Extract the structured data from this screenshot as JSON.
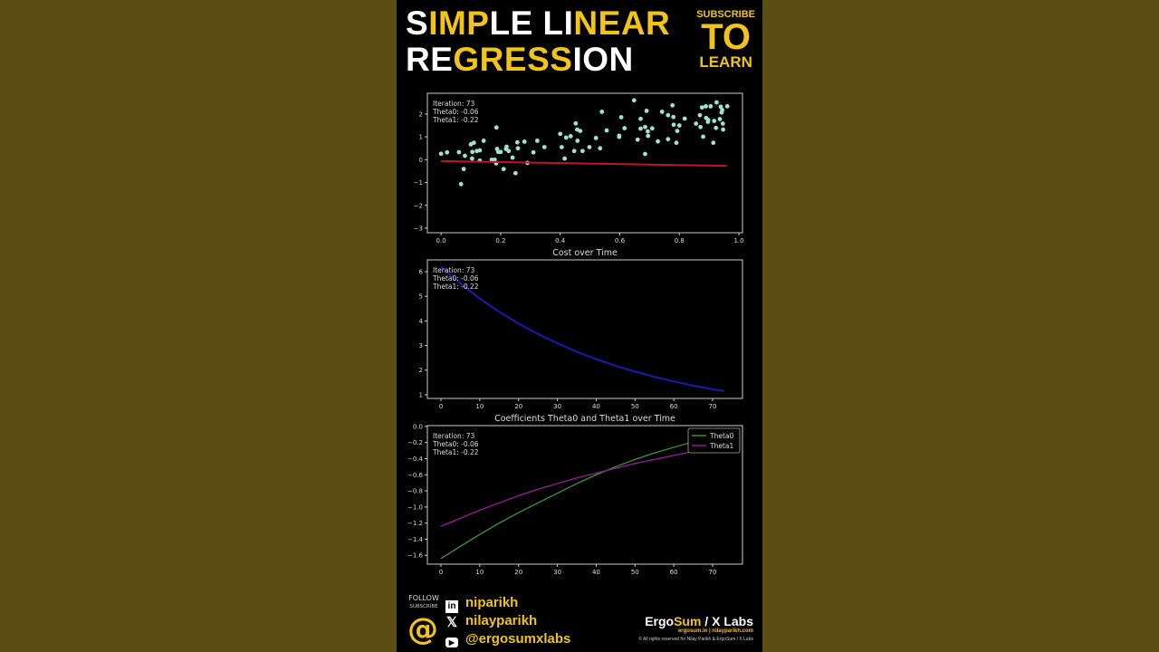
{
  "header": {
    "title_line1": [
      {
        "t": "S",
        "c": "w"
      },
      {
        "t": "IMP",
        "c": "y"
      },
      {
        "t": "LE LI",
        "c": "w"
      },
      {
        "t": "NEAR",
        "c": "y"
      }
    ],
    "title_line2": [
      {
        "t": "RE",
        "c": "w"
      },
      {
        "t": "GRESS",
        "c": "y"
      },
      {
        "t": "ION",
        "c": "w"
      }
    ],
    "subscribe": "SUBSCRIBE",
    "to": "TO",
    "learn": "LEARN"
  },
  "footer": {
    "follow": "FOLLOW",
    "subscribe": "SUBSCRIBE",
    "at_icon": "at-icon",
    "socials": [
      {
        "icon": "linkedin-icon",
        "handle": "niparikh"
      },
      {
        "icon": "x-icon",
        "handle": "nilayparikh"
      },
      {
        "icon": "youtube-icon",
        "handle": "@ergosumxlabs"
      }
    ],
    "brand_a": "Ergo",
    "brand_b": "Sum",
    "brand_c": " / X Labs",
    "sites": "ergosum.in | nilayparikh.com",
    "rights": "© All rights reserved for Nilay Parikh & ErgoSum / X Labs"
  },
  "annotation": {
    "iteration": "Iteration: 73",
    "theta0": "Theta0: -0.06",
    "theta1": "Theta1: -0.22"
  },
  "colors": {
    "accent": "#f2c319",
    "points": "#9fe2cf",
    "fit": "#c0142a",
    "cost": "#1a1ab0",
    "theta0": "#3a8a3a",
    "theta1": "#8e1f8e"
  },
  "chart_data": [
    {
      "type": "scatter",
      "title": "",
      "xlim": [
        -0.046,
        1.012
      ],
      "ylim": [
        -3.2,
        2.91
      ],
      "xticks": [
        "0.0",
        "0.2",
        "0.4",
        "0.6",
        "0.8",
        "1.0"
      ],
      "yticks": [
        "-3",
        "-2",
        "-1",
        "0",
        "1",
        "2"
      ],
      "points": [
        [
          0,
          0.26
        ],
        [
          0.02,
          0.32
        ],
        [
          0.06,
          0.33
        ],
        [
          0.08,
          0.17
        ],
        [
          0.076,
          -0.41
        ],
        [
          0.067,
          -1.07
        ],
        [
          0.1,
          0.67
        ],
        [
          0.11,
          0.74
        ],
        [
          0.105,
          0.34
        ],
        [
          0.104,
          0.05
        ],
        [
          0.12,
          0.38
        ],
        [
          0.13,
          0.41
        ],
        [
          0.13,
          -0.04
        ],
        [
          0.143,
          0.83
        ],
        [
          0.17,
          0
        ],
        [
          0.18,
          0
        ],
        [
          0.186,
          1.41
        ],
        [
          0.188,
          0.47
        ],
        [
          0.192,
          0.34
        ],
        [
          0.185,
          -0.16
        ],
        [
          0.2,
          0.34
        ],
        [
          0.21,
          -0.41
        ],
        [
          0.218,
          0.47
        ],
        [
          0.22,
          0.57
        ],
        [
          0.227,
          0.38
        ],
        [
          0.24,
          0.09
        ],
        [
          0.25,
          -0.59
        ],
        [
          0.256,
          0.76
        ],
        [
          0.258,
          0.5
        ],
        [
          0.28,
          0.79
        ],
        [
          0.29,
          -0.14
        ],
        [
          0.31,
          0.32
        ],
        [
          0.323,
          0.83
        ],
        [
          0.347,
          0.55
        ],
        [
          0.4,
          1.13
        ],
        [
          0.405,
          0.55
        ],
        [
          0.415,
          0.05
        ],
        [
          0.42,
          0.97
        ],
        [
          0.435,
          1.03
        ],
        [
          0.447,
          0.38
        ],
        [
          0.452,
          1.59
        ],
        [
          0.457,
          1.32
        ],
        [
          0.458,
          0.83
        ],
        [
          0.467,
          1.26
        ],
        [
          0.475,
          0.38
        ],
        [
          0.498,
          0.55
        ],
        [
          0.52,
          0.95
        ],
        [
          0.534,
          0.5
        ],
        [
          0.54,
          2.1
        ],
        [
          0.556,
          1.28
        ],
        [
          0.598,
          1.05
        ],
        [
          0.598,
          1.0
        ],
        [
          0.605,
          1.86
        ],
        [
          0.616,
          1.38
        ],
        [
          0.648,
          2.6
        ],
        [
          0.66,
          0.88
        ],
        [
          0.67,
          1.79
        ],
        [
          0.67,
          1.36
        ],
        [
          0.685,
          1.43
        ],
        [
          0.685,
          0.25
        ],
        [
          0.69,
          2.14
        ],
        [
          0.694,
          1.24
        ],
        [
          0.695,
          1.04
        ],
        [
          0.709,
          1.37
        ],
        [
          0.728,
          0.8
        ],
        [
          0.742,
          2.1
        ],
        [
          0.762,
          1.95
        ],
        [
          0.762,
          0.9
        ],
        [
          0.777,
          2.38
        ],
        [
          0.78,
          1.87
        ],
        [
          0.781,
          1.53
        ],
        [
          0.79,
          0.74
        ],
        [
          0.793,
          1.26
        ],
        [
          0.8,
          1.5
        ],
        [
          0.818,
          1.8
        ],
        [
          0.856,
          1.58
        ],
        [
          0.869,
          1.95
        ],
        [
          0.871,
          1.43
        ],
        [
          0.876,
          2.29
        ],
        [
          0.88,
          1.01
        ],
        [
          0.889,
          2.34
        ],
        [
          0.89,
          1.83
        ],
        [
          0.896,
          1.66
        ],
        [
          0.897,
          1.74
        ],
        [
          0.905,
          2.34
        ],
        [
          0.914,
          0.74
        ],
        [
          0.917,
          1.7
        ],
        [
          0.923,
          1.39
        ],
        [
          0.925,
          2.51
        ],
        [
          0.936,
          1.78
        ],
        [
          0.939,
          2.32
        ],
        [
          0.942,
          2.07
        ],
        [
          0.944,
          2.18
        ],
        [
          0.946,
          1.58
        ],
        [
          0.947,
          1.32
        ],
        [
          0.961,
          2.34
        ]
      ],
      "fit_line": {
        "x": [
          0,
          0.96
        ],
        "y": [
          -0.06,
          -0.271
        ]
      }
    },
    {
      "type": "line",
      "title": "Cost over Time",
      "xlim": [
        -3.5,
        77.7
      ],
      "ylim": [
        0.85,
        6.48
      ],
      "xticks": [
        "0",
        "10",
        "20",
        "30",
        "40",
        "50",
        "60",
        "70"
      ],
      "yticks": [
        "1",
        "2",
        "3",
        "4",
        "5",
        "6"
      ],
      "x": [
        0,
        5,
        10,
        15,
        20,
        25,
        30,
        35,
        40,
        45,
        50,
        55,
        60,
        65,
        70,
        73
      ],
      "series": [
        {
          "values": [
            6.2,
            5.52,
            4.91,
            4.37,
            3.89,
            3.47,
            3.09,
            2.75,
            2.45,
            2.18,
            1.94,
            1.73,
            1.54,
            1.37,
            1.22,
            1.15
          ]
        }
      ]
    },
    {
      "type": "line",
      "title": "Coefficients Theta0 and Theta1 over Time",
      "xlim": [
        -3.5,
        77.7
      ],
      "ylim": [
        -1.71,
        0.01
      ],
      "xticks": [
        "0",
        "10",
        "20",
        "30",
        "40",
        "50",
        "60",
        "70"
      ],
      "yticks": [
        "-1.6",
        "-1.4",
        "-1.2",
        "-1.0",
        "-0.8",
        "-0.6",
        "-0.4",
        "-0.2",
        "0.0"
      ],
      "legend": "top-right",
      "x": [
        0,
        5,
        10,
        15,
        20,
        25,
        30,
        35,
        40,
        45,
        50,
        55,
        60,
        65,
        70,
        73
      ],
      "series": [
        {
          "name": "Theta0",
          "values": [
            -1.64,
            -1.49,
            -1.34,
            -1.2,
            -1.07,
            -0.95,
            -0.83,
            -0.71,
            -0.6,
            -0.5,
            -0.41,
            -0.33,
            -0.26,
            -0.19,
            -0.12,
            -0.06
          ]
        },
        {
          "name": "Theta1",
          "values": [
            -1.24,
            -1.14,
            -1.04,
            -0.95,
            -0.86,
            -0.78,
            -0.71,
            -0.64,
            -0.58,
            -0.52,
            -0.46,
            -0.41,
            -0.36,
            -0.31,
            -0.26,
            -0.22
          ]
        }
      ]
    }
  ]
}
